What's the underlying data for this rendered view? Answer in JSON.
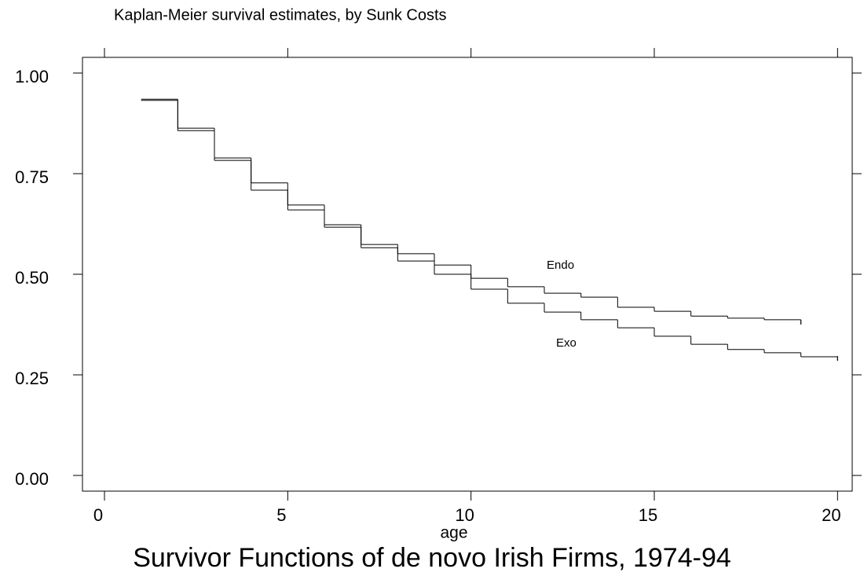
{
  "chart_data": {
    "type": "step",
    "title": "Kaplan-Meier survival estimates, by Sunk Costs",
    "x_label": "age",
    "caption": "Survivor Functions of de novo Irish Firms, 1974-94",
    "xlim": [
      -0.6,
      20.4
    ],
    "ylim": [
      -0.039,
      1.039
    ],
    "xticks": [
      0,
      5,
      10,
      15,
      20
    ],
    "yticks": [
      {
        "value": 0,
        "label": "0.00"
      },
      {
        "value": 0.25,
        "label": "0.25"
      },
      {
        "value": 0.5,
        "label": "0.50"
      },
      {
        "value": 0.75,
        "label": "0.75"
      },
      {
        "value": 1,
        "label": "1.00"
      }
    ],
    "series": [
      {
        "name": "Endo",
        "color": "#000000",
        "x": [
          1,
          2,
          3,
          4,
          5,
          6,
          7,
          8,
          9,
          10,
          11,
          12,
          13,
          14,
          15,
          16,
          17,
          18,
          19
        ],
        "values": [
          0.935,
          0.863,
          0.789,
          0.727,
          0.672,
          0.623,
          0.574,
          0.551,
          0.523,
          0.49,
          0.469,
          0.453,
          0.443,
          0.418,
          0.408,
          0.396,
          0.391,
          0.387,
          0.375
        ]
      },
      {
        "name": "Exo",
        "color": "#000000",
        "x": [
          1,
          2,
          3,
          4,
          5,
          6,
          7,
          8,
          9,
          10,
          11,
          12,
          13,
          14,
          15,
          16,
          17,
          18,
          19,
          20
        ],
        "values": [
          0.932,
          0.857,
          0.783,
          0.709,
          0.66,
          0.617,
          0.566,
          0.533,
          0.5,
          0.463,
          0.428,
          0.406,
          0.387,
          0.367,
          0.346,
          0.326,
          0.313,
          0.305,
          0.295,
          0.285
        ]
      }
    ]
  }
}
